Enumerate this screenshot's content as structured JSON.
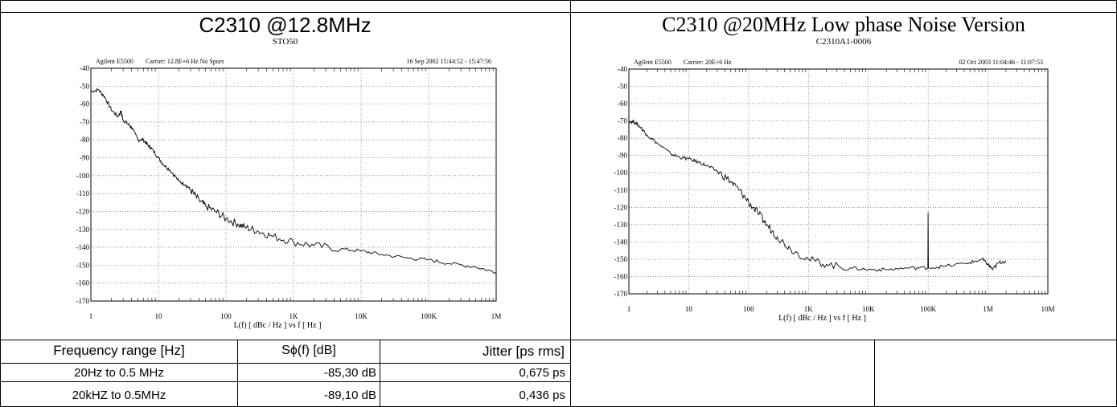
{
  "left_panel": {
    "title": "C2310 @12.8MHz",
    "subtitle": "STO50"
  },
  "right_panel": {
    "title": "C2310 @20MHz Low phase Noise Version",
    "subtitle": "C2310A1-0006"
  },
  "table": {
    "headers": [
      "Frequency range [Hz]",
      "Sϕ(f) [dB]",
      "Jitter [ps rms]"
    ],
    "rows": [
      [
        "20Hz to 0.5 MHz",
        "-85,30 dB",
        "0,675 ps"
      ],
      [
        "20kHZ to 0.5MHz",
        "-89,10 dB",
        "0,436 ps"
      ]
    ]
  },
  "colors": {
    "trace": "#000000",
    "grid": "#555555",
    "border": "#000000"
  },
  "chart_data": [
    {
      "type": "line",
      "header_left": "Agilent E5500",
      "header_mid": "Carrier: 12.8E+6 Hz   No Spurs",
      "header_right": "16 Sep 2002  15:44:52 - 15:47:56",
      "xlabel": "L(f)  [ dBc / Hz ]  vs  f  [ Hz ]",
      "xscale": "log",
      "xlim": [
        1,
        1000000
      ],
      "xticks": [
        1,
        10,
        100,
        1000,
        10000,
        100000,
        1000000
      ],
      "xticklabels": [
        "1",
        "10",
        "100",
        "1K",
        "10K",
        "100K",
        "1M"
      ],
      "ylim": [
        -170,
        -40
      ],
      "yticks": [
        -40,
        -50,
        -60,
        -70,
        -80,
        -90,
        -100,
        -110,
        -120,
        -130,
        -140,
        -150,
        -160,
        -170
      ],
      "grid": true,
      "series": [
        {
          "x": [
            1,
            1.3,
            1.6,
            2,
            2.5,
            2.8,
            3,
            3.5,
            4,
            5,
            6,
            7,
            8,
            10,
            12,
            15,
            20,
            25,
            30,
            40,
            50,
            70,
            100,
            150,
            200,
            300,
            500,
            1000,
            2000,
            5000,
            10000,
            20000,
            50000,
            100000,
            200000,
            500000,
            1000000
          ],
          "y": [
            -53,
            -52,
            -56,
            -63,
            -67,
            -64,
            -69,
            -71,
            -73,
            -80,
            -80,
            -83,
            -85,
            -90,
            -94,
            -97,
            -103,
            -105,
            -108,
            -114,
            -117,
            -120,
            -124,
            -127,
            -129,
            -131,
            -134,
            -137,
            -139,
            -141,
            -142,
            -144,
            -146,
            -147,
            -149,
            -151,
            -154
          ]
        }
      ]
    },
    {
      "type": "line",
      "header_left": "Agilent E5500",
      "header_mid": "Carrier: 20E+6 Hz",
      "header_right": "02 Oct 2003  11:04:46 - 11:07:53",
      "xlabel": "L(f)  [ dBc / Hz ]  vs  f  [ Hz ]",
      "xscale": "log",
      "xlim": [
        1,
        10000000
      ],
      "xticks": [
        1,
        10,
        100,
        1000,
        10000,
        100000,
        1000000,
        10000000
      ],
      "xticklabels": [
        "1",
        "10",
        "100",
        "1K",
        "10K",
        "100K",
        "1M",
        "10M"
      ],
      "ylim": [
        -170,
        -40
      ],
      "yticks": [
        -40,
        -50,
        -60,
        -70,
        -80,
        -90,
        -100,
        -110,
        -120,
        -130,
        -140,
        -150,
        -160,
        -170
      ],
      "grid": true,
      "series": [
        {
          "x": [
            1,
            1.3,
            1.6,
            2,
            3,
            5,
            7,
            10,
            15,
            20,
            30,
            50,
            70,
            100,
            150,
            200,
            300,
            500,
            1000,
            2000,
            5000,
            10000,
            20000,
            50000,
            99000,
            100000,
            101000,
            200000,
            500000,
            800000,
            1000000,
            1200000,
            1500000,
            2000000
          ],
          "y": [
            -70,
            -71,
            -74,
            -78,
            -83,
            -89,
            -91,
            -92,
            -94,
            -96,
            -99,
            -105,
            -110,
            -117,
            -124,
            -130,
            -137,
            -144,
            -150,
            -153,
            -155,
            -156,
            -156,
            -155,
            -155,
            -123,
            -155,
            -154,
            -152,
            -150,
            -153,
            -156,
            -152,
            -151
          ]
        }
      ]
    }
  ]
}
